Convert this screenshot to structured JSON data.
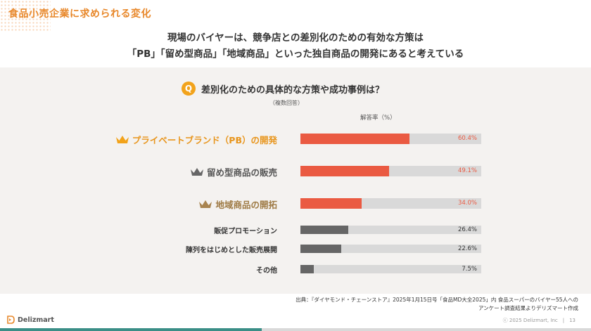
{
  "header": {
    "title": "食品小売企業に求められる変化",
    "headline_line1": "現場のバイヤーは、競争店との差別化のための有効な方策は",
    "headline_line2": "「PB」「留め型商品」「地域商品」といった独自商品の開発にあると考えている"
  },
  "question": {
    "badge": "Q",
    "text": "差別化のための具体的な方策や成功事例は？",
    "note": "（複数回答）"
  },
  "chart_data": {
    "type": "bar",
    "orientation": "horizontal",
    "title": "",
    "xlabel": "解答率（%）",
    "ylabel": "",
    "xlim": [
      0,
      100
    ],
    "categories": [
      "プライベートブランド（PB）の開発",
      "留め型商品の販売",
      "地域商品の開拓",
      "販促プロモーション",
      "陳列をはじめとした販売展開",
      "その他"
    ],
    "values": [
      60.4,
      49.1,
      34.0,
      26.4,
      22.6,
      7.5
    ],
    "value_labels": [
      "60.4%",
      "49.1%",
      "34.0%",
      "26.4%",
      "22.6%",
      "7.5%"
    ],
    "ranks": [
      "gold-crown",
      "silver-crown",
      "bronze-crown",
      "",
      "",
      ""
    ],
    "colors": {
      "top3": "#ea5a42",
      "others": "#666666",
      "track": "#d9d9d9"
    }
  },
  "footer": {
    "source_line1": "出典：『ダイヤモンド・チェーンストア』2025年1月15日号「食品MD大全2025」内 食品スーパーのバイヤー55人への",
    "source_line2": "アンケート調査結果よりデリズマート作成",
    "brand": "Delizmart",
    "copyright": "ⓒ 2025 Delizmart, Inc　|　13"
  }
}
